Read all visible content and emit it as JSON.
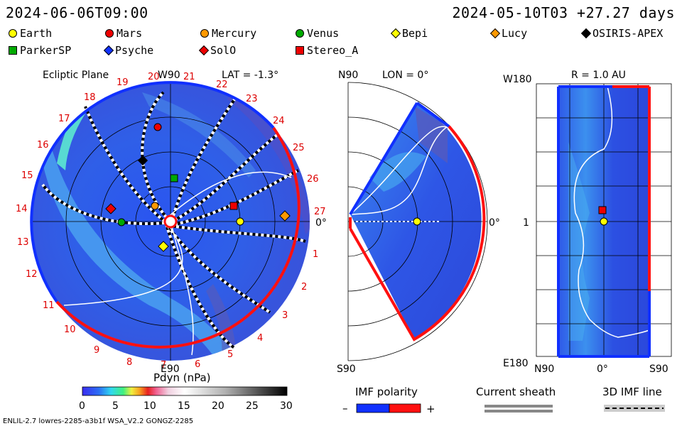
{
  "header": {
    "datetime": "2024-06-06T09:00",
    "run_info": "2024-05-10T03 +27.27 days"
  },
  "legend": {
    "items": [
      {
        "label": "Earth",
        "shape": "circle",
        "color": "#ffff00"
      },
      {
        "label": "Mars",
        "shape": "circle",
        "color": "#e00000"
      },
      {
        "label": "Mercury",
        "shape": "circle",
        "color": "#ff9900"
      },
      {
        "label": "Venus",
        "shape": "circle",
        "color": "#00a000"
      },
      {
        "label": "Bepi",
        "shape": "diamond",
        "color": "#ffff00"
      },
      {
        "label": "Lucy",
        "shape": "diamond",
        "color": "#ff9900"
      },
      {
        "label": "OSIRIS-APEX",
        "shape": "diamond",
        "color": "#000000"
      },
      {
        "label": "ParkerSP",
        "shape": "square",
        "color": "#00a000"
      },
      {
        "label": "Psyche",
        "shape": "diamond",
        "color": "#1030ff"
      },
      {
        "label": "SolO",
        "shape": "diamond",
        "color": "#e00000"
      },
      {
        "label": "Stereo_A",
        "shape": "square",
        "color": "#e00000"
      }
    ]
  },
  "panel_ecliptic": {
    "title": "Ecliptic Plane",
    "top_label": "W90",
    "lat": "LAT = -1.3°",
    "right_label": "0°",
    "bottom_label": "E90",
    "carrington": [
      "19",
      "20",
      "21",
      "22",
      "23",
      "24",
      "25",
      "26",
      "27",
      "1",
      "2",
      "3",
      "4",
      "5",
      "6",
      "7",
      "8",
      "9",
      "10",
      "11",
      "12",
      "13",
      "14",
      "15",
      "16",
      "17",
      "18"
    ]
  },
  "panel_meridional": {
    "top_label": "N90",
    "lon": "LON = 0°",
    "right_label": "0°",
    "bottom_label": "S90"
  },
  "panel_radial": {
    "top_label": "W180",
    "r": "R = 1.0 AU",
    "left_mid": "1",
    "bottom_left": "E180",
    "x_ticks": [
      "N90",
      "0°",
      "S90"
    ]
  },
  "colorbar": {
    "title": "Pdyn (nPa)",
    "ticks": [
      "0",
      "5",
      "10",
      "15",
      "20",
      "25",
      "30"
    ]
  },
  "imf": {
    "title": "IMF polarity",
    "minus": "–",
    "plus": "+",
    "sheath": "Current sheath",
    "line": "3D IMF line"
  },
  "footer": {
    "model": "ENLIL-2.7 lowres-2285-a3b1f WSA_V2.2 GONGZ-2285"
  }
}
